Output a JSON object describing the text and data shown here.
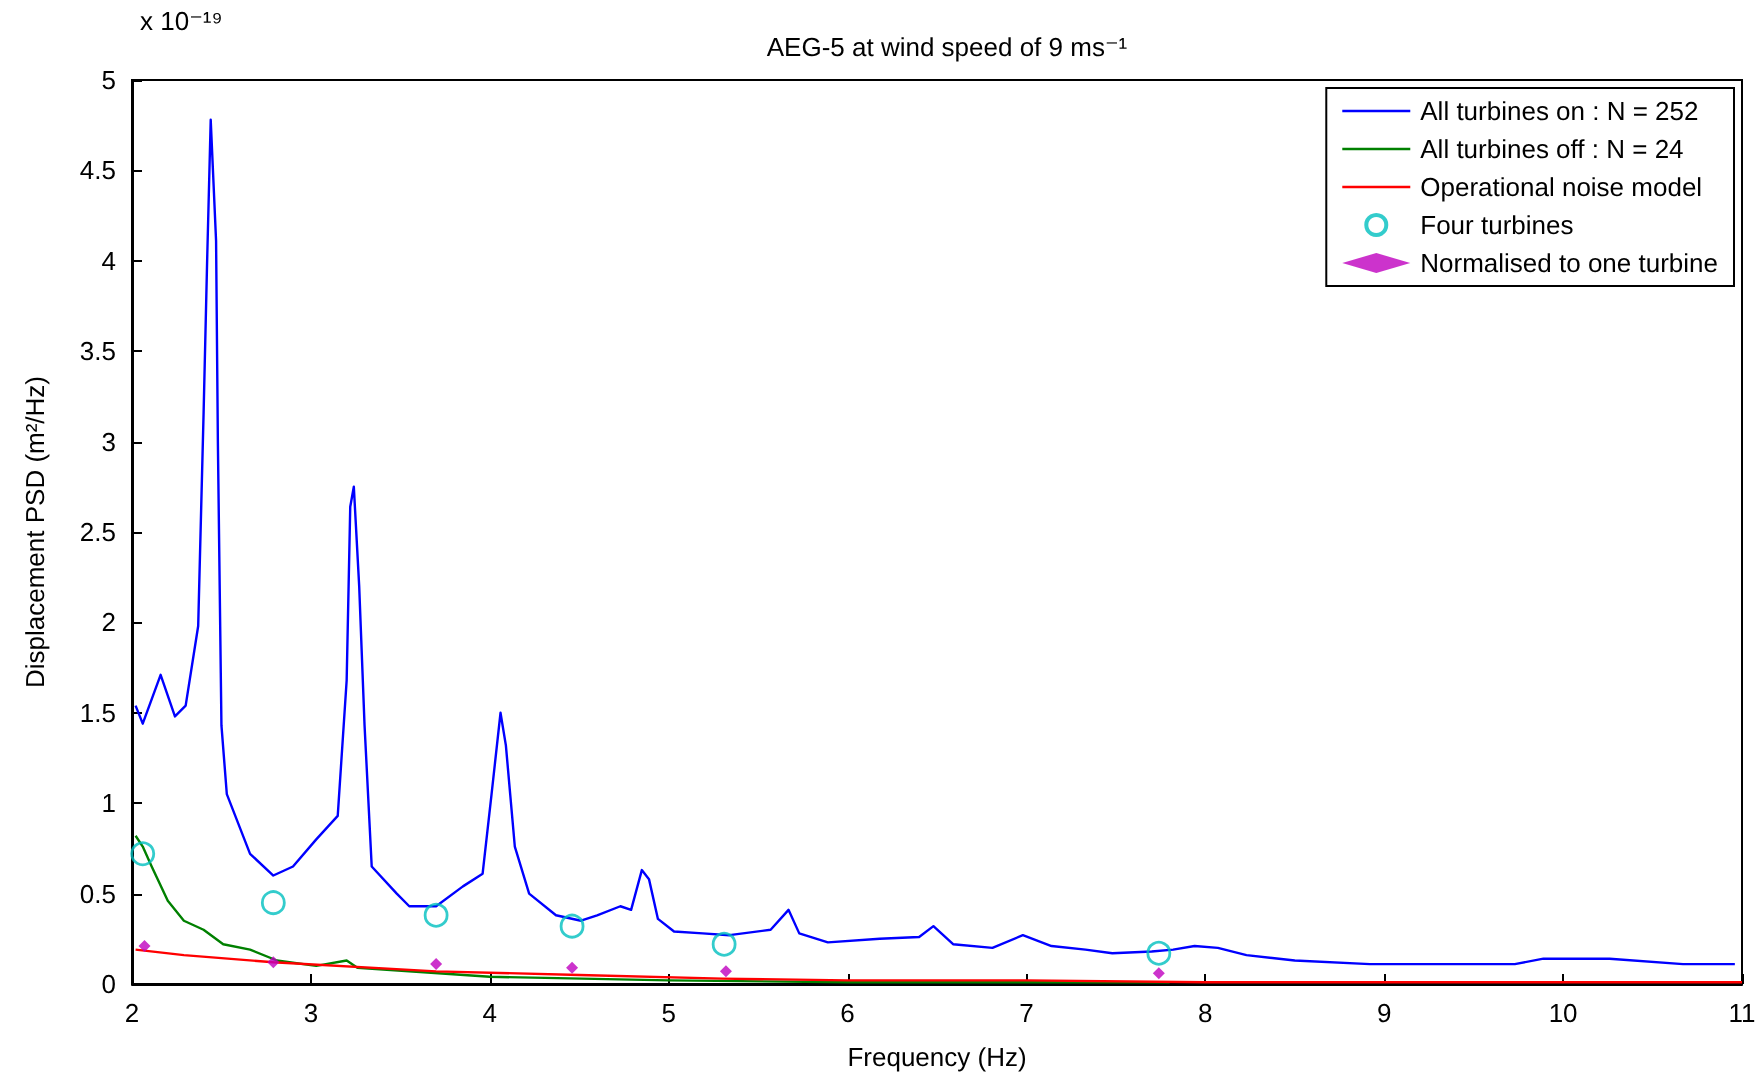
{
  "chart_data": {
    "type": "line",
    "title": "AEG-5 at wind speed of 9 ms⁻¹",
    "xlabel": "Frequency (Hz)",
    "ylabel": "Displacement PSD (m²/Hz)",
    "annotations": [
      "x 10⁻¹⁹"
    ],
    "xlim": [
      2,
      11
    ],
    "xticks": [
      2,
      3,
      4,
      5,
      6,
      7,
      8,
      9,
      10,
      11
    ],
    "ylim": [
      0,
      5
    ],
    "yticks": [
      0,
      0.5,
      1,
      1.5,
      2,
      2.5,
      3,
      3.5,
      4,
      4.5,
      5
    ],
    "grid": false,
    "legend": "top right",
    "series": [
      {
        "name": "All turbines on : N = 252",
        "marker": "none",
        "color": "#0000ff",
        "x": [
          2.02,
          2.06,
          2.16,
          2.24,
          2.3,
          2.37,
          2.4,
          2.42,
          2.44,
          2.47,
          2.48,
          2.5,
          2.53,
          2.66,
          2.79,
          2.9,
          3.03,
          3.15,
          3.2,
          3.22,
          3.24,
          3.27,
          3.3,
          3.34,
          3.48,
          3.55,
          3.7,
          3.85,
          3.96,
          4.01,
          4.06,
          4.09,
          4.14,
          4.22,
          4.37,
          4.51,
          4.6,
          4.73,
          4.79,
          4.85,
          4.89,
          4.94,
          5.03,
          5.19,
          5.34,
          5.57,
          5.67,
          5.73,
          5.89,
          6.18,
          6.4,
          6.48,
          6.59,
          6.81,
          6.98,
          7.14,
          7.33,
          7.48,
          7.7,
          7.82,
          7.94,
          8.07,
          8.23,
          8.5,
          8.92,
          9.73,
          9.89,
          10.26,
          10.67,
          10.96
        ],
        "values": [
          1.54,
          1.44,
          1.71,
          1.48,
          1.54,
          1.98,
          3.15,
          4.0,
          4.78,
          4.11,
          3.0,
          1.43,
          1.05,
          0.72,
          0.6,
          0.65,
          0.8,
          0.93,
          1.68,
          2.64,
          2.75,
          2.2,
          1.43,
          0.65,
          0.5,
          0.43,
          0.43,
          0.54,
          0.61,
          1.05,
          1.5,
          1.32,
          0.76,
          0.5,
          0.38,
          0.35,
          0.38,
          0.43,
          0.41,
          0.63,
          0.58,
          0.36,
          0.29,
          0.28,
          0.27,
          0.3,
          0.41,
          0.28,
          0.23,
          0.25,
          0.26,
          0.32,
          0.22,
          0.2,
          0.27,
          0.21,
          0.19,
          0.17,
          0.18,
          0.19,
          0.21,
          0.2,
          0.16,
          0.13,
          0.11,
          0.11,
          0.14,
          0.14,
          0.11,
          0.11
        ]
      },
      {
        "name": "All turbines off : N = 24",
        "marker": "none",
        "color": "#008000",
        "x": [
          2.02,
          2.06,
          2.11,
          2.2,
          2.29,
          2.4,
          2.51,
          2.66,
          2.81,
          3.03,
          3.2,
          3.26,
          4.0,
          5.0,
          6.0,
          7.0,
          7.8
        ],
        "values": [
          0.82,
          0.76,
          0.65,
          0.46,
          0.35,
          0.3,
          0.22,
          0.19,
          0.13,
          0.1,
          0.13,
          0.09,
          0.04,
          0.02,
          0.01,
          0.01,
          0.01
        ]
      },
      {
        "name": "Operational noise model",
        "marker": "none",
        "color": "#ff0000",
        "x": [
          2.02,
          2.29,
          2.79,
          3.7,
          4.5,
          5.3,
          6.0,
          7.0,
          8.0,
          11.0
        ],
        "values": [
          0.19,
          0.16,
          0.12,
          0.07,
          0.05,
          0.03,
          0.02,
          0.02,
          0.01,
          0.01
        ]
      },
      {
        "name": "Four turbines",
        "type": "scatter",
        "marker": "circle",
        "color": "#00bfbf",
        "x": [
          2.06,
          2.79,
          3.7,
          4.46,
          5.31,
          7.74
        ],
        "values": [
          0.72,
          0.45,
          0.38,
          0.32,
          0.22,
          0.17
        ]
      },
      {
        "name": "Normalised to one turbine",
        "type": "scatter",
        "marker": "diamond",
        "color": "#bf00bf",
        "x": [
          2.07,
          2.79,
          3.7,
          4.46,
          5.32,
          7.74
        ],
        "values": [
          0.21,
          0.12,
          0.11,
          0.09,
          0.07,
          0.06
        ]
      }
    ]
  }
}
